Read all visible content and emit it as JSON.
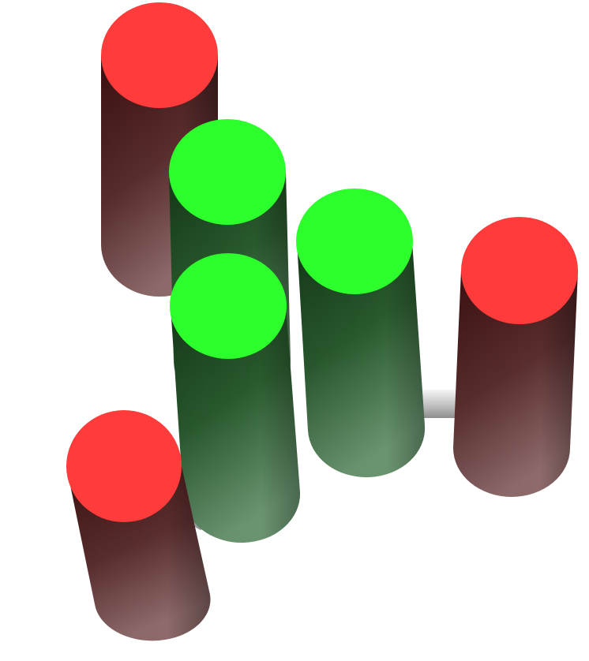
{
  "scene": {
    "background": "#ffffff",
    "colors": {
      "red_cap": "#ff3b3b",
      "red_body_dark": "#4a1515",
      "red_body_light": "#8a6262",
      "green_cap": "#2cff2c",
      "green_body_dark": "#15401a",
      "green_body_light": "#5e8a62",
      "connector": "#d8d8d8"
    },
    "objects": [
      {
        "name": "red-cylinder-top-left",
        "color": "red"
      },
      {
        "name": "green-cylinder-back",
        "color": "green"
      },
      {
        "name": "green-cylinder-right",
        "color": "green"
      },
      {
        "name": "red-cylinder-right",
        "color": "red"
      },
      {
        "name": "green-cylinder-front",
        "color": "green"
      },
      {
        "name": "red-cylinder-bottom-left",
        "color": "red"
      }
    ],
    "connectors": [
      {
        "name": "connector-green-to-red-right"
      },
      {
        "name": "connector-red-to-green-front"
      }
    ]
  }
}
